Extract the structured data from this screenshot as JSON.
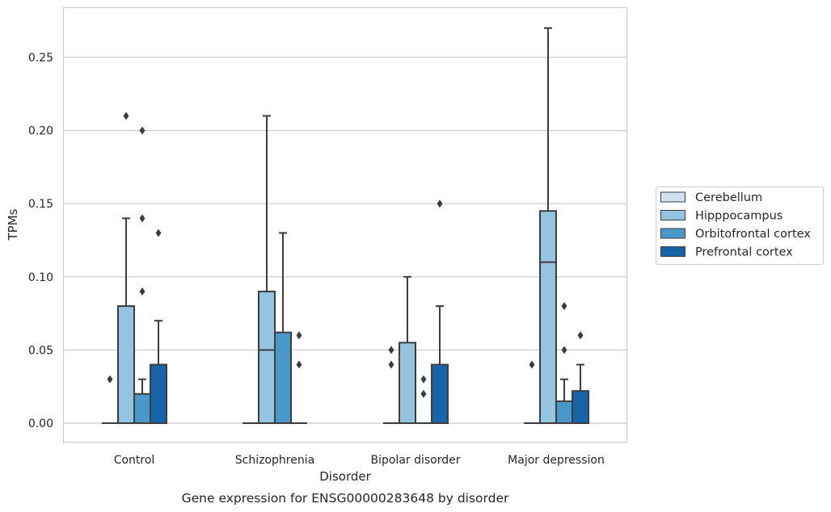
{
  "chart_data": {
    "type": "box",
    "caption": "Gene expression for ENSG00000283648 by disorder",
    "xlabel": "Disorder",
    "ylabel": "TPMs",
    "ylim": [
      -0.013,
      0.285
    ],
    "yticks": [
      "0.00",
      "0.05",
      "0.10",
      "0.15",
      "0.20",
      "0.25"
    ],
    "ytick_values": [
      0,
      0.05,
      0.1,
      0.15,
      0.2,
      0.25
    ],
    "grid": "horizontal",
    "legend_position": "right",
    "categories": [
      "Control",
      "Schizophrenia",
      "Bipolar disorder",
      "Major depression"
    ],
    "series": [
      {
        "name": "Cerebellum",
        "color": "#d0e1f2",
        "boxes": [
          {
            "q1": 0,
            "median": 0,
            "q3": 0,
            "whisker_low": 0,
            "whisker_high": 0,
            "outliers": [
              0.03
            ]
          },
          {
            "q1": 0,
            "median": 0,
            "q3": 0,
            "whisker_low": 0,
            "whisker_high": 0,
            "outliers": []
          },
          {
            "q1": 0,
            "median": 0,
            "q3": 0,
            "whisker_low": 0,
            "whisker_high": 0,
            "outliers": [
              0.04,
              0.05
            ]
          },
          {
            "q1": 0,
            "median": 0,
            "q3": 0,
            "whisker_low": 0,
            "whisker_high": 0,
            "outliers": [
              0.04
            ]
          }
        ]
      },
      {
        "name": "Hipppocampus",
        "color": "#94c4df",
        "boxes": [
          {
            "q1": 0,
            "median": 0,
            "q3": 0.08,
            "whisker_low": 0,
            "whisker_high": 0.14,
            "outliers": [
              0.21
            ]
          },
          {
            "q1": 0,
            "median": 0.05,
            "q3": 0.09,
            "whisker_low": 0,
            "whisker_high": 0.21,
            "outliers": []
          },
          {
            "q1": 0,
            "median": 0,
            "q3": 0.055,
            "whisker_low": 0,
            "whisker_high": 0.1,
            "outliers": []
          },
          {
            "q1": 0,
            "median": 0.11,
            "q3": 0.145,
            "whisker_low": 0,
            "whisker_high": 0.27,
            "outliers": []
          }
        ]
      },
      {
        "name": "Orbitofrontal cortex",
        "color": "#4a98c9",
        "boxes": [
          {
            "q1": 0,
            "median": 0,
            "q3": 0.02,
            "whisker_low": 0,
            "whisker_high": 0.03,
            "outliers": [
              0.09,
              0.14,
              0.2
            ]
          },
          {
            "q1": 0,
            "median": 0,
            "q3": 0.062,
            "whisker_low": 0,
            "whisker_high": 0.13,
            "outliers": []
          },
          {
            "q1": 0,
            "median": 0,
            "q3": 0,
            "whisker_low": 0,
            "whisker_high": 0,
            "outliers": [
              0.02,
              0.03
            ]
          },
          {
            "q1": 0,
            "median": 0,
            "q3": 0.015,
            "whisker_low": 0,
            "whisker_high": 0.03,
            "outliers": [
              0.05,
              0.08
            ]
          }
        ]
      },
      {
        "name": "Prefrontal cortex",
        "color": "#1764ab",
        "boxes": [
          {
            "q1": 0,
            "median": 0,
            "q3": 0.04,
            "whisker_low": 0,
            "whisker_high": 0.07,
            "outliers": [
              0.13
            ]
          },
          {
            "q1": 0,
            "median": 0,
            "q3": 0,
            "whisker_low": 0,
            "whisker_high": 0,
            "outliers": [
              0.04,
              0.06
            ]
          },
          {
            "q1": 0,
            "median": 0,
            "q3": 0.04,
            "whisker_low": 0,
            "whisker_high": 0.08,
            "outliers": [
              0.15
            ]
          },
          {
            "q1": 0,
            "median": 0,
            "q3": 0.022,
            "whisker_low": 0,
            "whisker_high": 0.04,
            "outliers": [
              0.06
            ]
          }
        ]
      }
    ]
  }
}
